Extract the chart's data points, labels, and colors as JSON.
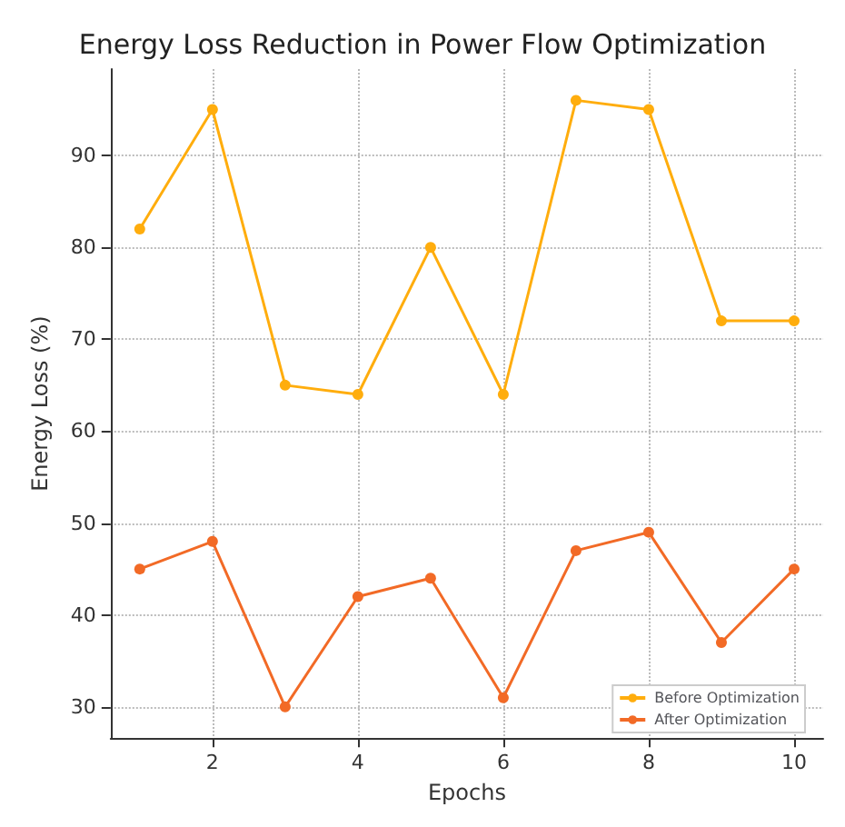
{
  "chart_data": {
    "type": "line",
    "title": "Energy Loss Reduction in Power Flow Optimization",
    "xlabel": "Epochs",
    "ylabel": "Energy Loss (%)",
    "x": [
      1,
      2,
      3,
      4,
      5,
      6,
      7,
      8,
      9,
      10
    ],
    "series": [
      {
        "name": "Before Optimization",
        "color": "#ffad0d",
        "values": [
          82,
          95,
          65,
          64,
          80,
          64,
          96,
          95,
          72,
          72
        ]
      },
      {
        "name": "After Optimization",
        "color": "#f26a26",
        "values": [
          45,
          48,
          30,
          42,
          44,
          31,
          47,
          49,
          37,
          45
        ]
      }
    ],
    "xlim": [
      0.6,
      10.4
    ],
    "xticks": [
      2,
      4,
      6,
      8,
      10
    ],
    "ylim": [
      26.6,
      99.4
    ],
    "yticks": [
      30,
      40,
      50,
      60,
      70,
      80,
      90
    ],
    "grid": true,
    "legend": "bottom right",
    "marker": "circle",
    "line_style": "solid"
  }
}
